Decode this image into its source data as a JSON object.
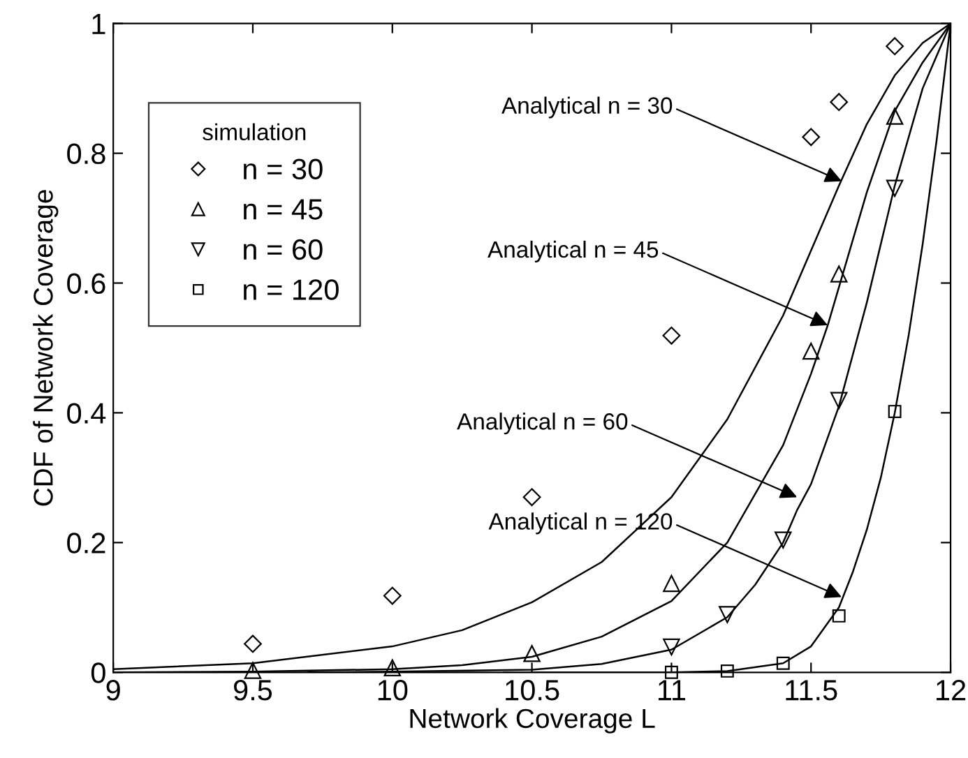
{
  "chart_data": {
    "type": "scatter",
    "xlabel": "Network Coverage L",
    "ylabel": "CDF of Network Coverage",
    "legend_title": "simulation",
    "legend": "top left",
    "grid": false,
    "xlim": [
      9,
      12
    ],
    "xticks": [
      9,
      9.5,
      10,
      10.5,
      11,
      11.5,
      12
    ],
    "ylim": [
      0,
      1
    ],
    "yticks": [
      0,
      0.2,
      0.4,
      0.6,
      0.8,
      1
    ],
    "series": [
      {
        "name": "n = 30",
        "color": "#000000",
        "marker": "diamond",
        "x": [
          9.5,
          10,
          10.5,
          11,
          11.5,
          11.6,
          11.8
        ],
        "values": [
          0.044,
          0.118,
          0.27,
          0.519,
          0.825,
          0.879,
          0.965
        ]
      },
      {
        "name": "n = 45",
        "color": "#000000",
        "marker": "triangle",
        "x": [
          9.5,
          10,
          10.5,
          11,
          11.5,
          11.6,
          11.8
        ],
        "values": [
          0.003,
          0.007,
          0.029,
          0.137,
          0.495,
          0.614,
          0.857
        ]
      },
      {
        "name": "n = 60",
        "color": "#000000",
        "marker": "triangle_down",
        "x": [
          11,
          11.2,
          11.4,
          11.6,
          11.8
        ],
        "values": [
          0.039,
          0.089,
          0.204,
          0.419,
          0.746
        ]
      },
      {
        "name": "n = 120",
        "color": "#000000",
        "marker": "square",
        "x": [
          11,
          11.2,
          11.4,
          11.6,
          11.8
        ],
        "values": [
          0,
          0.002,
          0.014,
          0.087,
          0.402
        ]
      },
      {
        "type": "line",
        "color": "#000000",
        "marker": "none",
        "x": [
          9,
          9.5,
          10,
          10.25,
          10.5,
          10.75,
          11,
          11.2,
          11.4,
          11.5,
          11.6,
          11.7,
          11.8,
          11.9,
          12
        ],
        "values": [
          0.005,
          0.014,
          0.04,
          0.065,
          0.108,
          0.17,
          0.27,
          0.39,
          0.55,
          0.65,
          0.75,
          0.845,
          0.92,
          0.97,
          1
        ]
      },
      {
        "type": "line",
        "color": "#000000",
        "marker": "none",
        "x": [
          9,
          9.5,
          10,
          10.25,
          10.5,
          10.75,
          11,
          11.2,
          11.4,
          11.5,
          11.56,
          11.7,
          11.8,
          11.9,
          12
        ],
        "values": [
          0,
          0.001,
          0.005,
          0.011,
          0.024,
          0.055,
          0.11,
          0.2,
          0.35,
          0.46,
          0.535,
          0.74,
          0.865,
          0.94,
          1
        ]
      },
      {
        "type": "line",
        "color": "#000000",
        "marker": "none",
        "x": [
          9.7,
          10,
          10.5,
          10.75,
          11,
          11.2,
          11.3,
          11.4,
          11.45,
          11.5,
          11.6,
          11.7,
          11.8,
          11.9,
          12
        ],
        "values": [
          0,
          0.001,
          0.004,
          0.013,
          0.035,
          0.085,
          0.135,
          0.2,
          0.25,
          0.29,
          0.41,
          0.57,
          0.75,
          0.9,
          1
        ]
      },
      {
        "type": "line",
        "color": "#000000",
        "marker": "none",
        "x": [
          10.4,
          11,
          11.2,
          11.4,
          11.5,
          11.6,
          11.65,
          11.7,
          11.75,
          11.8,
          11.85,
          11.9,
          11.95,
          12
        ],
        "values": [
          0,
          0,
          0.002,
          0.014,
          0.04,
          0.1,
          0.155,
          0.22,
          0.3,
          0.4,
          0.52,
          0.66,
          0.82,
          1
        ]
      }
    ],
    "annotations": [
      {
        "text": "Analytical n = 30",
        "x": 11.61,
        "y": 0.757
      },
      {
        "text": "Analytical n = 45",
        "x": 11.56,
        "y": 0.535
      },
      {
        "text": "Analytical n = 60",
        "x": 11.45,
        "y": 0.27
      },
      {
        "text": "Analytical n = 120",
        "x": 11.61,
        "y": 0.116
      }
    ]
  }
}
